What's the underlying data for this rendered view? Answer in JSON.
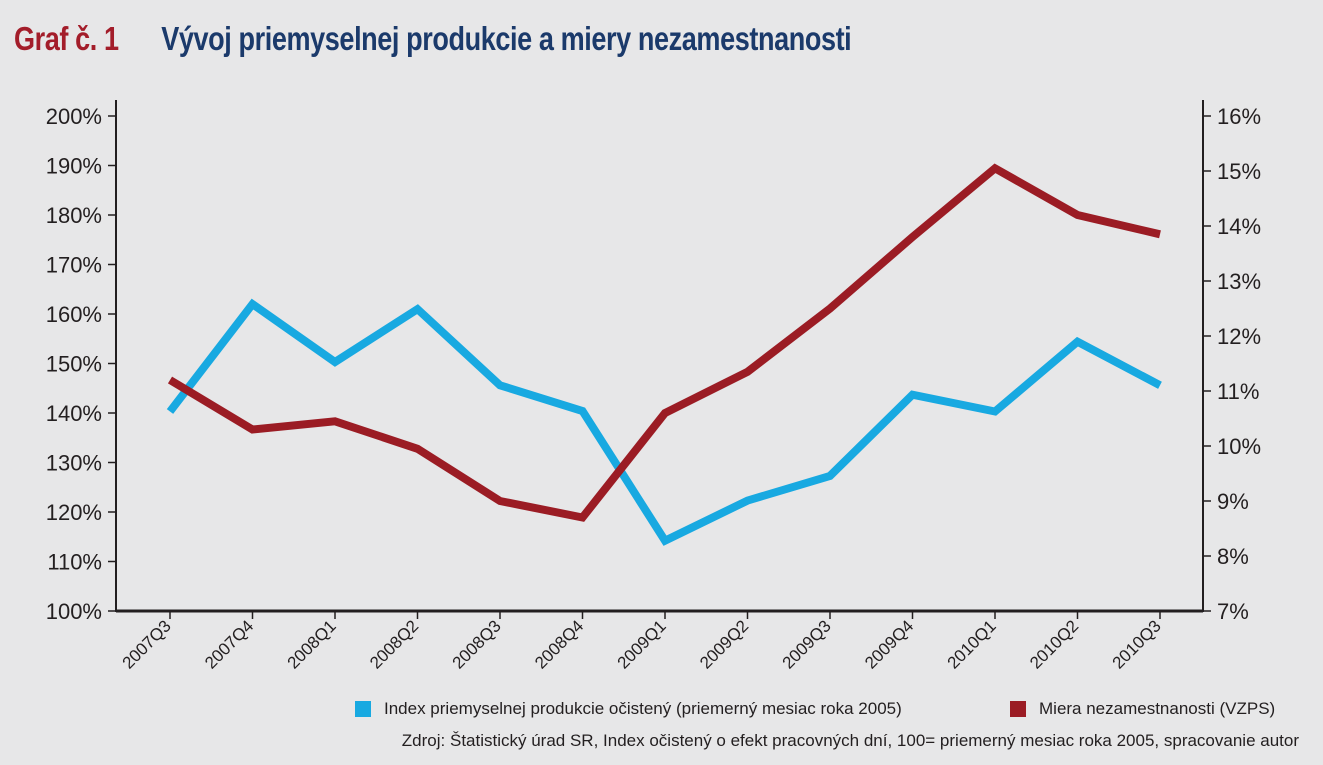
{
  "header": {
    "label": "Graf č. 1",
    "title": "Vývoj priemyselnej produkcie a miery nezamestnanosti"
  },
  "colors": {
    "series_index": "#18a9e1",
    "series_unemployment": "#9b1c24",
    "title_label": "#a31d2a",
    "title_text": "#1b3a6b"
  },
  "chart_data": {
    "type": "line",
    "title": "Vývoj priemyselnej produkcie a miery nezamestnanosti",
    "categories": [
      "2007Q3",
      "2007Q4",
      "2008Q1",
      "2008Q2",
      "2008Q3",
      "2008Q4",
      "2009Q1",
      "2009Q2",
      "2009Q3",
      "2009Q4",
      "2010Q1",
      "2010Q2",
      "2010Q3"
    ],
    "left_axis": {
      "ylim": [
        100,
        200
      ],
      "ticks": [
        "100%",
        "110%",
        "120%",
        "130%",
        "140%",
        "150%",
        "160%",
        "170%",
        "180%",
        "190%",
        "200%"
      ]
    },
    "right_axis": {
      "ylim": [
        7,
        16
      ],
      "ticks": [
        "7%",
        "8%",
        "9%",
        "10%",
        "11%",
        "12%",
        "13%",
        "14%",
        "15%",
        "16%"
      ]
    },
    "series": [
      {
        "name": "Index priemyselnej produkcie očistený (priemerný mesiac roka 2005)",
        "axis": "left",
        "color": "#18a9e1",
        "values": [
          140.3,
          162.0,
          150.3,
          161.0,
          145.6,
          140.4,
          114.2,
          122.3,
          127.3,
          143.7,
          140.3,
          154.4,
          145.6
        ]
      },
      {
        "name": "Miera nezamestnanosti (VZPS)",
        "axis": "right",
        "color": "#9b1c24",
        "values": [
          11.2,
          10.3,
          10.45,
          9.95,
          9.0,
          8.7,
          10.6,
          11.35,
          12.5,
          13.8,
          15.05,
          14.2,
          13.85
        ]
      }
    ],
    "legend_position": "bottom",
    "grid": false
  },
  "legend": {
    "index_label": "Index priemyselnej produkcie očistený (priemerný mesiac roka 2005)",
    "unemployment_label": "Miera nezamestnanosti (VZPS)"
  },
  "source": "Zdroj: Štatistický úrad SR, Index očistený o efekt pracovných dní, 100= priemerný mesiac roka 2005, spracovanie autor"
}
